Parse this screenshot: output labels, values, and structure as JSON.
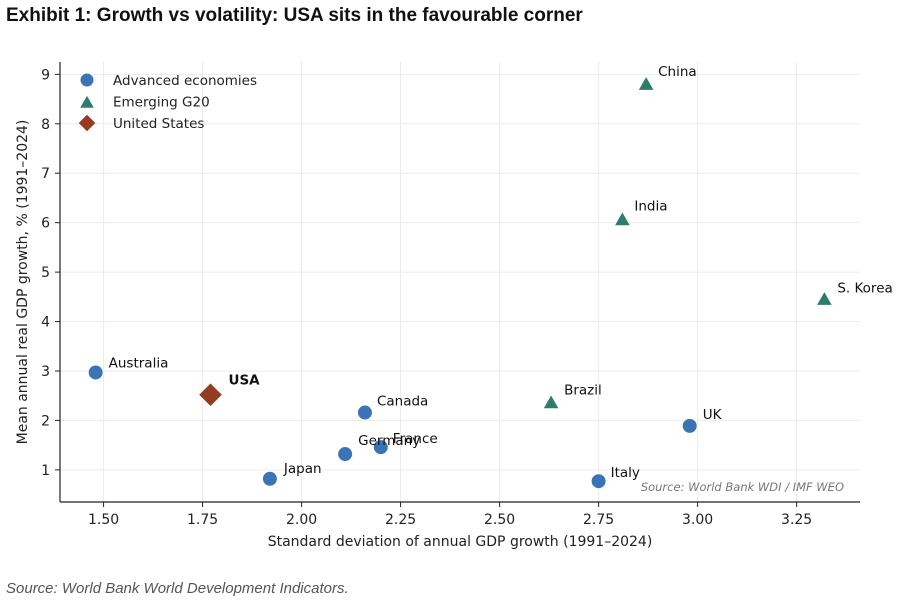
{
  "exhibit_title": "Exhibit 1: Growth vs volatility: USA sits in the favourable corner",
  "footer_source": "Source: World Bank World Development Indicators.",
  "chart_data": {
    "type": "scatter",
    "title": "Exhibit 1: Growth vs volatility: USA sits in the favourable corner",
    "xlabel": "Standard deviation of annual GDP growth (1991–2024)",
    "ylabel": "Mean annual real GDP growth, % (1991–2024)",
    "xlim": [
      1.39,
      3.41
    ],
    "ylim": [
      0.35,
      9.25
    ],
    "xticks": [
      1.5,
      1.75,
      2.0,
      2.25,
      2.5,
      2.75,
      3.0,
      3.25
    ],
    "xtick_labels": [
      "1.50",
      "1.75",
      "2.00",
      "2.25",
      "2.50",
      "2.75",
      "3.00",
      "3.25"
    ],
    "yticks": [
      1,
      2,
      3,
      4,
      5,
      6,
      7,
      8,
      9
    ],
    "ytick_labels": [
      "1",
      "2",
      "3",
      "4",
      "5",
      "6",
      "7",
      "8",
      "9"
    ],
    "grid": true,
    "legend_position": "top-left",
    "annotation": "Source: World Bank WDI / IMF WEO",
    "series": [
      {
        "name": "Advanced economies",
        "marker": "circle",
        "color": "#3a74b4",
        "points": [
          {
            "label": "Australia",
            "x": 1.48,
            "y": 2.97
          },
          {
            "label": "Japan",
            "x": 1.92,
            "y": 0.82
          },
          {
            "label": "Germany",
            "x": 2.11,
            "y": 1.32
          },
          {
            "label": "Canada",
            "x": 2.16,
            "y": 2.16
          },
          {
            "label": "France",
            "x": 2.2,
            "y": 1.46
          },
          {
            "label": "Italy",
            "x": 2.75,
            "y": 0.77
          },
          {
            "label": "UK",
            "x": 2.98,
            "y": 1.89
          }
        ]
      },
      {
        "name": "Emerging G20",
        "marker": "triangle",
        "color": "#2e7d6b",
        "points": [
          {
            "label": "Brazil",
            "x": 2.63,
            "y": 2.36
          },
          {
            "label": "India",
            "x": 2.81,
            "y": 6.06
          },
          {
            "label": "China",
            "x": 2.87,
            "y": 8.8
          },
          {
            "label": "S. Korea",
            "x": 3.32,
            "y": 4.45
          }
        ]
      },
      {
        "name": "United States",
        "marker": "diamond",
        "color": "#943b21",
        "points": [
          {
            "label": "USA",
            "x": 1.77,
            "y": 2.52
          }
        ]
      }
    ]
  }
}
